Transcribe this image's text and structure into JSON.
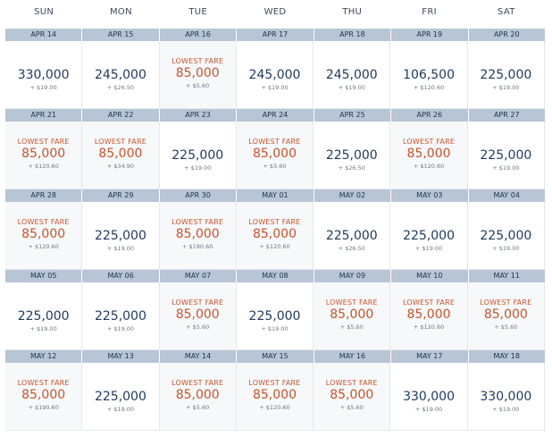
{
  "days": [
    "SUN",
    "MON",
    "TUE",
    "WED",
    "THU",
    "FRI",
    "SAT"
  ],
  "lowest_label": "LOWEST FARE",
  "weeks": [
    {
      "cells": [
        {
          "date": "APR 14",
          "miles": "330,000",
          "tax": "+ $19.00",
          "lowest": false
        },
        {
          "date": "APR 15",
          "miles": "245,000",
          "tax": "+ $26.50",
          "lowest": false
        },
        {
          "date": "APR 16",
          "miles": "85,000",
          "tax": "+ $5.60",
          "lowest": true
        },
        {
          "date": "APR 17",
          "miles": "245,000",
          "tax": "+ $19.00",
          "lowest": false
        },
        {
          "date": "APR 18",
          "miles": "245,000",
          "tax": "+ $19.00",
          "lowest": false
        },
        {
          "date": "APR 19",
          "miles": "106,500",
          "tax": "+ $120.60",
          "lowest": false
        },
        {
          "date": "APR 20",
          "miles": "225,000",
          "tax": "+ $19.00",
          "lowest": false
        }
      ]
    },
    {
      "cells": [
        {
          "date": "APR 21",
          "miles": "85,000",
          "tax": "+ $120.60",
          "lowest": true
        },
        {
          "date": "APR 22",
          "miles": "85,000",
          "tax": "+ $34.90",
          "lowest": true
        },
        {
          "date": "APR 23",
          "miles": "225,000",
          "tax": "+ $19.00",
          "lowest": false
        },
        {
          "date": "APR 24",
          "miles": "85,000",
          "tax": "+ $5.60",
          "lowest": true
        },
        {
          "date": "APR 25",
          "miles": "225,000",
          "tax": "+ $26.50",
          "lowest": false
        },
        {
          "date": "APR 26",
          "miles": "85,000",
          "tax": "+ $120.60",
          "lowest": true
        },
        {
          "date": "APR 27",
          "miles": "225,000",
          "tax": "+ $19.00",
          "lowest": false
        }
      ]
    },
    {
      "cells": [
        {
          "date": "APR 28",
          "miles": "85,000",
          "tax": "+ $120.60",
          "lowest": true
        },
        {
          "date": "APR 29",
          "miles": "225,000",
          "tax": "+ $19.00",
          "lowest": false
        },
        {
          "date": "APR 30",
          "miles": "85,000",
          "tax": "+ $190.60",
          "lowest": true
        },
        {
          "date": "MAY 01",
          "miles": "85,000",
          "tax": "+ $120.60",
          "lowest": true
        },
        {
          "date": "MAY 02",
          "miles": "225,000",
          "tax": "+ $26.50",
          "lowest": false
        },
        {
          "date": "MAY 03",
          "miles": "225,000",
          "tax": "+ $19.00",
          "lowest": false
        },
        {
          "date": "MAY 04",
          "miles": "225,000",
          "tax": "+ $19.00",
          "lowest": false
        }
      ]
    },
    {
      "cells": [
        {
          "date": "MAY 05",
          "miles": "225,000",
          "tax": "+ $19.00",
          "lowest": false
        },
        {
          "date": "MAY 06",
          "miles": "225,000",
          "tax": "+ $19.00",
          "lowest": false
        },
        {
          "date": "MAY 07",
          "miles": "85,000",
          "tax": "+ $5.60",
          "lowest": true
        },
        {
          "date": "MAY 08",
          "miles": "225,000",
          "tax": "+ $19.00",
          "lowest": false
        },
        {
          "date": "MAY 09",
          "miles": "85,000",
          "tax": "+ $5.60",
          "lowest": true
        },
        {
          "date": "MAY 10",
          "miles": "85,000",
          "tax": "+ $120.60",
          "lowest": true
        },
        {
          "date": "MAY 11",
          "miles": "85,000",
          "tax": "+ $5.60",
          "lowest": true
        }
      ]
    },
    {
      "cells": [
        {
          "date": "MAY 12",
          "miles": "85,000",
          "tax": "+ $190.60",
          "lowest": true
        },
        {
          "date": "MAY 13",
          "miles": "225,000",
          "tax": "+ $19.00",
          "lowest": false
        },
        {
          "date": "MAY 14",
          "miles": "85,000",
          "tax": "+ $5.60",
          "lowest": true
        },
        {
          "date": "MAY 15",
          "miles": "85,000",
          "tax": "+ $120.60",
          "lowest": true
        },
        {
          "date": "MAY 16",
          "miles": "85,000",
          "tax": "+ $5.60",
          "lowest": true
        },
        {
          "date": "MAY 17",
          "miles": "330,000",
          "tax": "+ $19.00",
          "lowest": false
        },
        {
          "date": "MAY 18",
          "miles": "330,000",
          "tax": "+ $19.00",
          "lowest": false
        }
      ]
    }
  ]
}
